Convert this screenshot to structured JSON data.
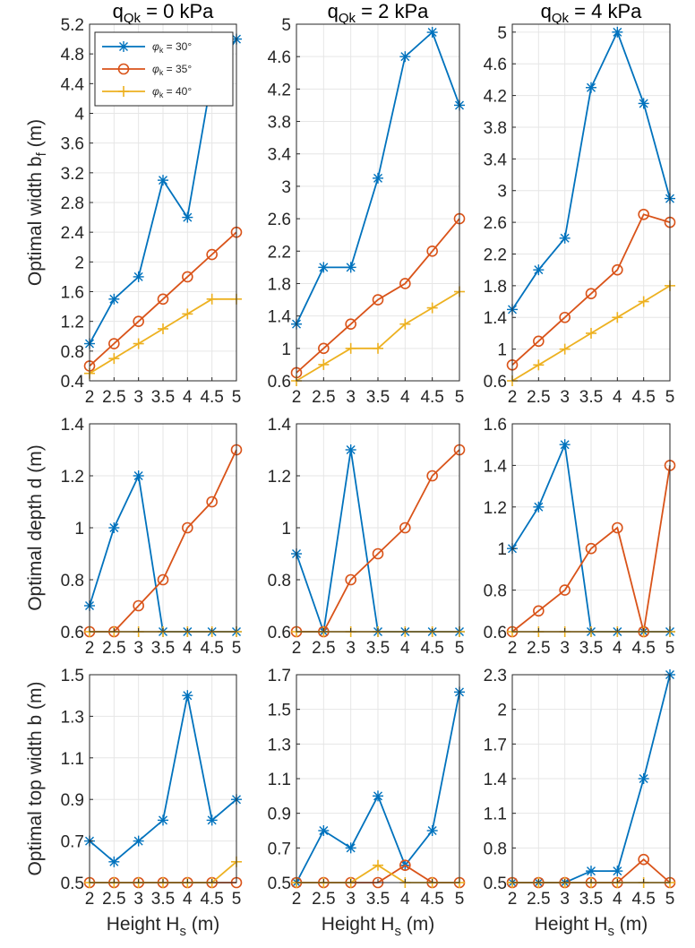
{
  "chart_data": {
    "type": "line",
    "x": [
      2,
      2.5,
      3,
      3.5,
      4,
      4.5,
      5
    ],
    "x_tick_labels": [
      "2",
      "2.5",
      "3",
      "3.5",
      "4",
      "4.5",
      "5"
    ],
    "xlabel": {
      "main": "Height H",
      "sub": "s",
      "unit": " (m)"
    },
    "column_titles": [
      {
        "main": "q",
        "sub": "Qk",
        "rest": " = 0 kPa"
      },
      {
        "main": "q",
        "sub": "Qk",
        "rest": " = 2 kPa"
      },
      {
        "main": "q",
        "sub": "Qk",
        "rest": " = 4 kPa"
      }
    ],
    "row_ylabels": [
      {
        "main": "Optimal width b",
        "sub": "f",
        "unit": " (m)"
      },
      {
        "main": "Optimal depth d (m)",
        "sub": "",
        "unit": ""
      },
      {
        "main": "Optimal top width b (m)",
        "sub": "",
        "unit": ""
      }
    ],
    "legend": {
      "placement": "top-left of first panel",
      "entries": [
        {
          "sym": "φ",
          "sub": "k",
          "rest": " = 30°",
          "series": "phi30"
        },
        {
          "sym": "φ",
          "sub": "k",
          "rest": " = 35°",
          "series": "phi35"
        },
        {
          "sym": "φ",
          "sub": "k",
          "rest": " = 40°",
          "series": "phi40"
        }
      ]
    },
    "series_styles": {
      "phi30": {
        "color": "#0072BD",
        "marker": "asterisk"
      },
      "phi35": {
        "color": "#D95319",
        "marker": "circle"
      },
      "phi40": {
        "color": "#EDB120",
        "marker": "plus"
      }
    },
    "panels": [
      [
        {
          "ylim": [
            0.4,
            5.2
          ],
          "yticks": [
            "0.4",
            "0.8",
            "1.2",
            "1.6",
            "2",
            "2.4",
            "2.8",
            "3.2",
            "3.6",
            "4",
            "4.4",
            "4.8",
            "5.2"
          ],
          "series": [
            {
              "name": "phi30",
              "values": [
                0.9,
                1.5,
                1.8,
                3.1,
                2.6,
                4.5,
                5.0
              ]
            },
            {
              "name": "phi35",
              "values": [
                0.6,
                0.9,
                1.2,
                1.5,
                1.8,
                2.1,
                2.4
              ]
            },
            {
              "name": "phi40",
              "values": [
                0.5,
                0.7,
                0.9,
                1.1,
                1.3,
                1.5,
                1.5
              ]
            }
          ]
        },
        {
          "ylim": [
            0.6,
            5.0
          ],
          "yticks": [
            "0.6",
            "1",
            "1.4",
            "1.8",
            "2.2",
            "2.6",
            "3",
            "3.4",
            "3.8",
            "4.2",
            "4.6",
            "5"
          ],
          "series": [
            {
              "name": "phi30",
              "values": [
                1.3,
                2.0,
                2.0,
                3.1,
                4.6,
                4.9,
                4.0
              ]
            },
            {
              "name": "phi35",
              "values": [
                0.7,
                1.0,
                1.3,
                1.6,
                1.8,
                2.2,
                2.6
              ]
            },
            {
              "name": "phi40",
              "values": [
                0.6,
                0.8,
                1.0,
                1.0,
                1.3,
                1.5,
                1.7
              ]
            }
          ]
        },
        {
          "ylim": [
            0.6,
            5.1
          ],
          "yticks": [
            "0.6",
            "1",
            "1.4",
            "1.8",
            "2.2",
            "2.6",
            "3",
            "3.4",
            "3.8",
            "4.2",
            "4.6",
            "5"
          ],
          "series": [
            {
              "name": "phi30",
              "values": [
                1.5,
                2.0,
                2.4,
                4.3,
                5.0,
                4.1,
                2.9
              ]
            },
            {
              "name": "phi35",
              "values": [
                0.8,
                1.1,
                1.4,
                1.7,
                2.0,
                2.7,
                2.6
              ]
            },
            {
              "name": "phi40",
              "values": [
                0.6,
                0.8,
                1.0,
                1.2,
                1.4,
                1.6,
                1.8
              ]
            }
          ]
        }
      ],
      [
        {
          "ylim": [
            0.6,
            1.4
          ],
          "yticks": [
            "0.6",
            "0.8",
            "1",
            "1.2",
            "1.4"
          ],
          "series": [
            {
              "name": "phi30",
              "values": [
                0.7,
                1.0,
                1.2,
                0.6,
                0.6,
                0.6,
                0.6
              ]
            },
            {
              "name": "phi35",
              "values": [
                0.6,
                0.6,
                0.7,
                0.8,
                1.0,
                1.1,
                1.3
              ]
            },
            {
              "name": "phi40",
              "values": [
                0.6,
                0.6,
                0.6,
                0.6,
                0.6,
                0.6,
                0.6
              ]
            }
          ]
        },
        {
          "ylim": [
            0.6,
            1.4
          ],
          "yticks": [
            "0.6",
            "0.8",
            "1",
            "1.2",
            "1.4"
          ],
          "series": [
            {
              "name": "phi30",
              "values": [
                0.9,
                0.6,
                1.3,
                0.6,
                0.6,
                0.6,
                0.6
              ]
            },
            {
              "name": "phi35",
              "values": [
                0.6,
                0.6,
                0.8,
                0.9,
                1.0,
                1.2,
                1.3
              ]
            },
            {
              "name": "phi40",
              "values": [
                0.6,
                0.6,
                0.6,
                0.6,
                0.6,
                0.6,
                0.6
              ]
            }
          ]
        },
        {
          "ylim": [
            0.6,
            1.6
          ],
          "yticks": [
            "0.6",
            "0.8",
            "1",
            "1.2",
            "1.4",
            "1.6"
          ],
          "series": [
            {
              "name": "phi30",
              "values": [
                1.0,
                1.2,
                1.5,
                0.6,
                0.6,
                0.6,
                0.6
              ]
            },
            {
              "name": "phi35",
              "values": [
                0.6,
                0.7,
                0.8,
                1.0,
                1.1,
                0.6,
                1.4
              ]
            },
            {
              "name": "phi40",
              "values": [
                0.6,
                0.6,
                0.6,
                0.6,
                0.6,
                0.6,
                0.6
              ]
            }
          ]
        }
      ],
      [
        {
          "ylim": [
            0.5,
            1.5
          ],
          "yticks": [
            "0.5",
            "0.7",
            "0.9",
            "1.1",
            "1.3",
            "1.5"
          ],
          "series": [
            {
              "name": "phi30",
              "values": [
                0.7,
                0.6,
                0.7,
                0.8,
                1.4,
                0.8,
                0.9
              ]
            },
            {
              "name": "phi35",
              "values": [
                0.5,
                0.5,
                0.5,
                0.5,
                0.5,
                0.5,
                0.5
              ]
            },
            {
              "name": "phi40",
              "values": [
                0.5,
                0.5,
                0.5,
                0.5,
                0.5,
                0.5,
                0.6
              ]
            }
          ]
        },
        {
          "ylim": [
            0.5,
            1.7
          ],
          "yticks": [
            "0.5",
            "0.7",
            "0.9",
            "1.1",
            "1.3",
            "1.5",
            "1.7"
          ],
          "series": [
            {
              "name": "phi30",
              "values": [
                0.5,
                0.8,
                0.7,
                1.0,
                0.6,
                0.8,
                1.6
              ]
            },
            {
              "name": "phi35",
              "values": [
                0.5,
                0.5,
                0.5,
                0.5,
                0.6,
                0.5,
                0.5
              ]
            },
            {
              "name": "phi40",
              "values": [
                0.5,
                0.5,
                0.5,
                0.6,
                0.5,
                0.5,
                0.5
              ]
            }
          ]
        },
        {
          "ylim": [
            0.5,
            2.3
          ],
          "yticks": [
            "0.5",
            "0.8",
            "1.1",
            "1.4",
            "1.7",
            "2",
            "2.3"
          ],
          "series": [
            {
              "name": "phi30",
              "values": [
                0.5,
                0.5,
                0.5,
                0.6,
                0.6,
                1.4,
                2.3
              ]
            },
            {
              "name": "phi35",
              "values": [
                0.5,
                0.5,
                0.5,
                0.5,
                0.5,
                0.7,
                0.5
              ]
            },
            {
              "name": "phi40",
              "values": [
                0.5,
                0.5,
                0.5,
                0.5,
                0.5,
                0.5,
                0.5
              ]
            }
          ]
        }
      ]
    ]
  }
}
